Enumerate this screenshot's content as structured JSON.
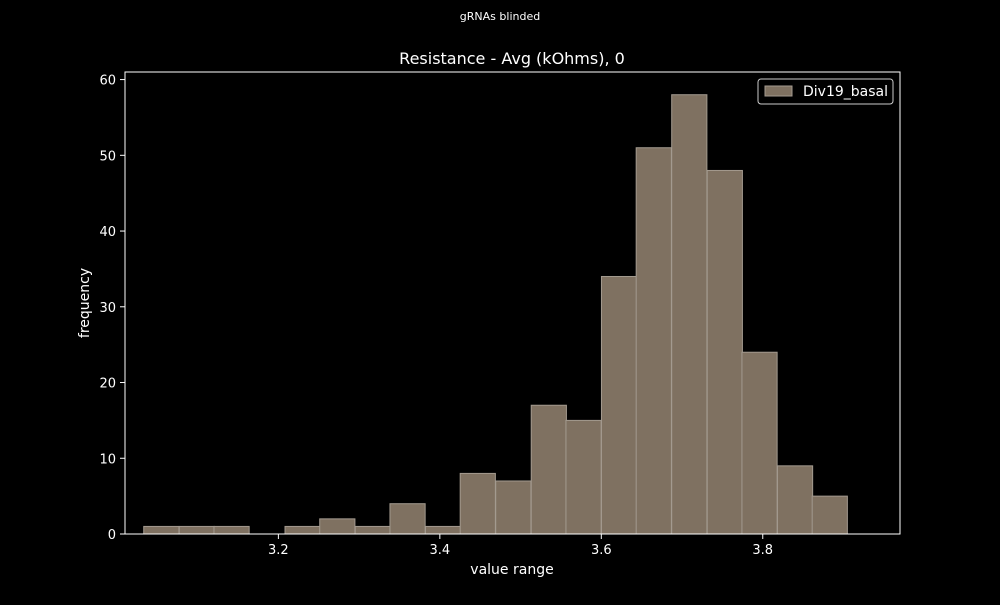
{
  "colors": {
    "background": "#000000",
    "foreground": "#ffffff",
    "bar_fill": "#7f7161",
    "bar_edge": "#a39a8f"
  },
  "chart_data": {
    "type": "bar",
    "suptitle": "gRNAs blinded",
    "title": "Resistance - Avg (kOhms), 0",
    "xlabel": "value range",
    "ylabel": "frequency",
    "xlim": [
      3.01,
      3.97
    ],
    "ylim": [
      0,
      61
    ],
    "bin_width": 0.0436,
    "xticks": [
      3.2,
      3.4,
      3.6,
      3.8
    ],
    "xtick_labels": [
      "3.2",
      "3.4",
      "3.6",
      "3.8"
    ],
    "yticks": [
      0,
      10,
      20,
      30,
      40,
      50,
      60
    ],
    "ytick_labels": [
      "0",
      "10",
      "20",
      "30",
      "40",
      "50",
      "60"
    ],
    "legend_position": "upper right",
    "series": [
      {
        "name": "Div19_basal",
        "bins": [
          {
            "x": 3.055,
            "count": 1
          },
          {
            "x": 3.099,
            "count": 1
          },
          {
            "x": 3.142,
            "count": 1
          },
          {
            "x": 3.186,
            "count": 0
          },
          {
            "x": 3.23,
            "count": 1
          },
          {
            "x": 3.273,
            "count": 2
          },
          {
            "x": 3.317,
            "count": 1
          },
          {
            "x": 3.36,
            "count": 4
          },
          {
            "x": 3.404,
            "count": 1
          },
          {
            "x": 3.447,
            "count": 8
          },
          {
            "x": 3.491,
            "count": 7
          },
          {
            "x": 3.535,
            "count": 17
          },
          {
            "x": 3.578,
            "count": 15
          },
          {
            "x": 3.622,
            "count": 34
          },
          {
            "x": 3.665,
            "count": 51
          },
          {
            "x": 3.709,
            "count": 58
          },
          {
            "x": 3.753,
            "count": 48
          },
          {
            "x": 3.796,
            "count": 24
          },
          {
            "x": 3.84,
            "count": 9
          },
          {
            "x": 3.883,
            "count": 5
          }
        ]
      }
    ]
  }
}
